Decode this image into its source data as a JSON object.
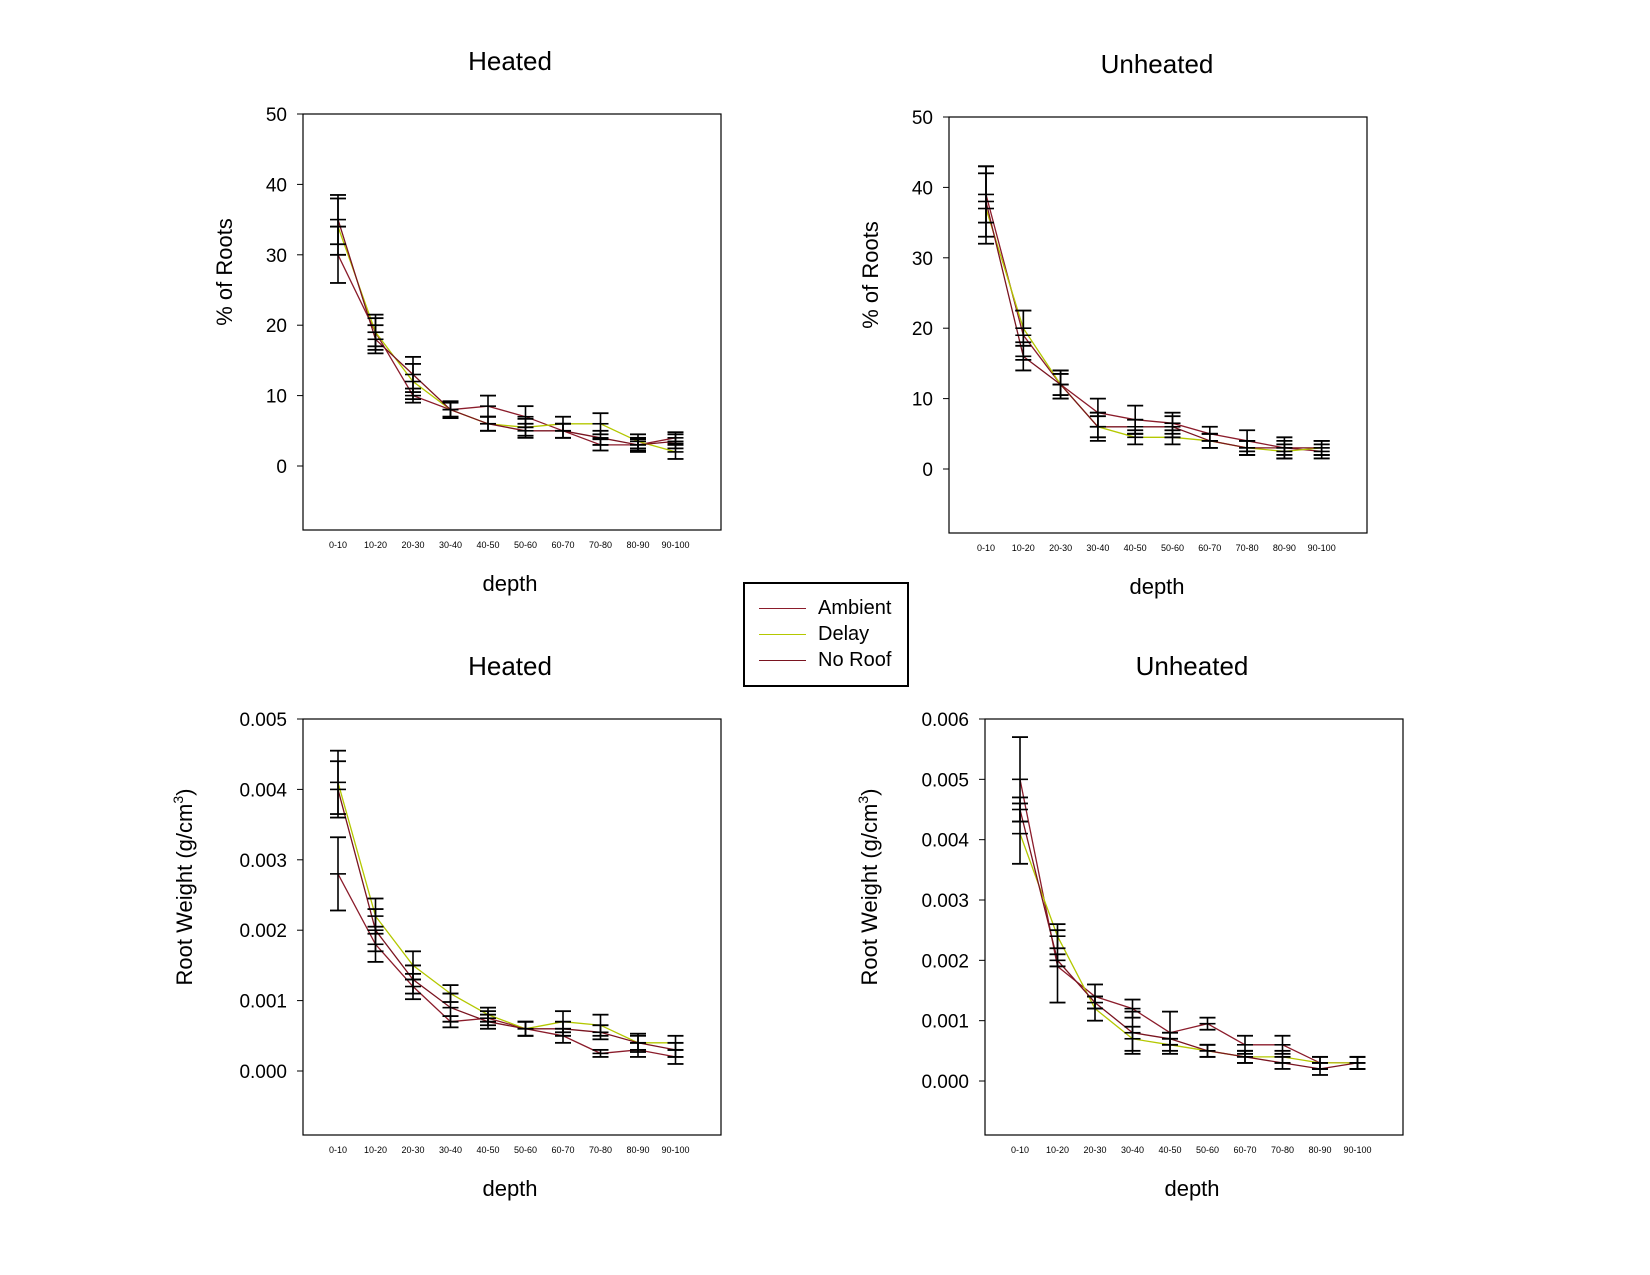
{
  "colors": {
    "Ambient": "#8b1c2b",
    "Delay": "#b4c800",
    "No Roof": "#7a1420",
    "errorbar": "#000000"
  },
  "legend": {
    "items": [
      {
        "label": "Ambient",
        "color": "#8b1c2b"
      },
      {
        "label": "Delay",
        "color": "#b4c800"
      },
      {
        "label": "No Roof",
        "color": "#7a1420"
      }
    ]
  },
  "chart_data": [
    {
      "type": "line",
      "title": "Heated",
      "xlabel": "depth",
      "ylabel": "% of Roots",
      "categories": [
        "0-10",
        "10-20",
        "20-30",
        "30-40",
        "40-50",
        "50-60",
        "60-70",
        "70-80",
        "80-90",
        "90-100"
      ],
      "ylim": [
        -9,
        50
      ],
      "yticks": [
        "0",
        "10",
        "20",
        "30",
        "40",
        "50"
      ],
      "ytick_values": [
        0,
        10,
        20,
        30,
        40,
        50
      ],
      "series": [
        {
          "name": "Ambient",
          "values": [
            30,
            19,
            10,
            8,
            8.5,
            7,
            5,
            3,
            3,
            4
          ],
          "err": [
            4,
            2,
            1,
            1,
            1.5,
            1.5,
            1,
            0.8,
            0.8,
            0.8
          ]
        },
        {
          "name": "Delay",
          "values": [
            34,
            19,
            12,
            8,
            6,
            5.5,
            6,
            6,
            3.5,
            2
          ],
          "err": [
            4,
            2.5,
            2.5,
            1.2,
            1,
            1.2,
            1,
            1.5,
            1,
            1
          ]
        },
        {
          "name": "No Roof",
          "values": [
            35,
            18,
            13,
            8,
            6,
            5,
            5,
            4,
            3,
            3.5
          ],
          "err": [
            3.5,
            2,
            2.5,
            1,
            1,
            1,
            1,
            1,
            1,
            1
          ]
        }
      ]
    },
    {
      "type": "line",
      "title": "Unheated",
      "xlabel": "depth",
      "ylabel": "% of Roots",
      "categories": [
        "0-10",
        "10-20",
        "20-30",
        "30-40",
        "40-50",
        "50-60",
        "60-70",
        "70-80",
        "80-90",
        "90-100"
      ],
      "ylim": [
        -9,
        50
      ],
      "yticks": [
        "0",
        "10",
        "20",
        "30",
        "40",
        "50"
      ],
      "ytick_values": [
        0,
        10,
        20,
        30,
        40,
        50
      ],
      "series": [
        {
          "name": "Ambient",
          "values": [
            39,
            19,
            12,
            8,
            7,
            6.5,
            5,
            4,
            3,
            2.5
          ],
          "err": [
            4,
            3.5,
            2,
            2,
            2,
            1.5,
            1,
            1.5,
            1.5,
            1
          ]
        },
        {
          "name": "Delay",
          "values": [
            37,
            20,
            12,
            6,
            4.5,
            4.5,
            4,
            3,
            2.5,
            3
          ],
          "err": [
            5,
            2.5,
            1.5,
            1.5,
            1,
            1,
            1,
            1,
            1,
            1
          ]
        },
        {
          "name": "No Roof",
          "values": [
            38,
            16,
            12,
            6,
            6,
            6,
            4,
            3,
            3,
            3
          ],
          "err": [
            5,
            2,
            2,
            2,
            1,
            1.5,
            1,
            1,
            1,
            1
          ]
        }
      ]
    },
    {
      "type": "line",
      "title": "Heated",
      "xlabel": "depth",
      "ylabel": "Root Weight (g/cm3)",
      "ylabel_main": "Root Weight (g/cm",
      "ylabel_sup": "3",
      "ylabel_end": ")",
      "categories": [
        "0-10",
        "10-20",
        "20-30",
        "30-40",
        "40-50",
        "50-60",
        "60-70",
        "70-80",
        "80-90",
        "90-100"
      ],
      "ylim": [
        -0.0009,
        0.005
      ],
      "yticks": [
        "0.000",
        "0.001",
        "0.002",
        "0.003",
        "0.004",
        "0.005"
      ],
      "ytick_values": [
        0,
        0.001,
        0.002,
        0.003,
        0.004,
        0.005
      ],
      "series": [
        {
          "name": "Ambient",
          "values": [
            0.0028,
            0.0018,
            0.0012,
            0.0007,
            0.00075,
            0.0006,
            0.0005,
            0.00025,
            0.0003,
            0.0002
          ],
          "err": [
            0.00052,
            0.00025,
            0.00018,
            8e-05,
            0.0001,
            0.0001,
            0.0001,
            5e-05,
            0.0001,
            0.0001
          ]
        },
        {
          "name": "Delay",
          "values": [
            0.0041,
            0.0022,
            0.0015,
            0.0011,
            0.0008,
            0.0006,
            0.0007,
            0.00065,
            0.0004,
            0.0004
          ],
          "err": [
            0.00045,
            0.00025,
            0.0002,
            0.00012,
            0.0001,
            0.0001,
            0.00015,
            0.00015,
            0.00013,
            0.0001
          ]
        },
        {
          "name": "No Roof",
          "values": [
            0.004,
            0.002,
            0.0013,
            0.0009,
            0.0007,
            0.0006,
            0.0006,
            0.00055,
            0.0004,
            0.0003
          ],
          "err": [
            0.0004,
            0.0003,
            0.0002,
            0.0002,
            0.0001,
            0.0001,
            0.0001,
            0.0001,
            0.0001,
            0.0001
          ]
        }
      ]
    },
    {
      "type": "line",
      "title": "Unheated",
      "xlabel": "depth",
      "ylabel": "Root Weight (g/cm3)",
      "ylabel_main": "Root Weight (g/cm",
      "ylabel_sup": "3",
      "ylabel_end": ")",
      "categories": [
        "0-10",
        "10-20",
        "20-30",
        "30-40",
        "40-50",
        "50-60",
        "60-70",
        "70-80",
        "80-90",
        "90-100"
      ],
      "ylim": [
        -0.0009,
        0.006
      ],
      "yticks": [
        "0.000",
        "0.001",
        "0.002",
        "0.003",
        "0.004",
        "0.005",
        "0.006"
      ],
      "ytick_values": [
        0,
        0.001,
        0.002,
        0.003,
        0.004,
        0.005,
        0.006
      ],
      "series": [
        {
          "name": "Ambient",
          "values": [
            0.005,
            0.0019,
            0.0014,
            0.0012,
            0.0008,
            0.00095,
            0.0006,
            0.0006,
            0.0003,
            0.0003
          ],
          "err": [
            0.0007,
            0.0006,
            0.0002,
            0.00015,
            0.00035,
            0.0001,
            0.00015,
            0.00015,
            0.0001,
            0.0001
          ]
        },
        {
          "name": "Delay",
          "values": [
            0.0041,
            0.0024,
            0.0012,
            0.0007,
            0.0006,
            0.0005,
            0.0004,
            0.0004,
            0.0003,
            0.0003
          ],
          "err": [
            0.0005,
            0.0002,
            0.0002,
            0.0002,
            0.0001,
            0.0001,
            0.0001,
            0.0001,
            0.0001,
            0.0001
          ]
        },
        {
          "name": "No Roof",
          "values": [
            0.0045,
            0.002,
            0.0013,
            0.0008,
            0.0007,
            0.0005,
            0.0004,
            0.0003,
            0.0002,
            0.0003
          ],
          "err": [
            0.0002,
            0.0001,
            0.0001,
            0.00035,
            0.0001,
            0.0001,
            0.0001,
            0.0001,
            0.0001,
            0.0001
          ]
        }
      ]
    }
  ]
}
